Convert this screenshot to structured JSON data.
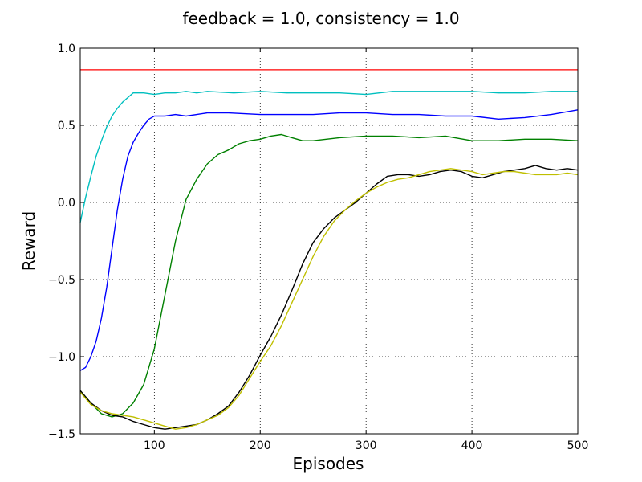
{
  "chart_data": {
    "type": "line",
    "title": "feedback = 1.0, consistency = 1.0",
    "xlabel": "Episodes",
    "ylabel": "Reward",
    "xlim": [
      30,
      500
    ],
    "ylim": [
      -1.5,
      1.0
    ],
    "xticks": [
      100,
      200,
      300,
      400,
      500
    ],
    "xtick_labels": [
      "100",
      "200",
      "300",
      "400",
      "500"
    ],
    "yticks": [
      -1.5,
      -1.0,
      -0.5,
      0.0,
      0.5,
      1.0
    ],
    "ytick_labels": [
      "−1.5",
      "−1.0",
      "−0.5",
      "0.0",
      "0.5",
      "1.0"
    ],
    "grid": true,
    "hlines": [
      {
        "y": 0.86,
        "color": "#ff0000"
      }
    ],
    "series": [
      {
        "color": "#00bfbf",
        "x": [
          30,
          35,
          40,
          45,
          50,
          55,
          60,
          65,
          70,
          75,
          80,
          90,
          100,
          110,
          120,
          130,
          140,
          150,
          175,
          200,
          225,
          250,
          275,
          300,
          325,
          350,
          375,
          400,
          425,
          450,
          475,
          500
        ],
        "y": [
          -0.13,
          0.03,
          0.17,
          0.3,
          0.4,
          0.49,
          0.56,
          0.61,
          0.65,
          0.68,
          0.71,
          0.71,
          0.7,
          0.71,
          0.71,
          0.72,
          0.71,
          0.72,
          0.71,
          0.72,
          0.71,
          0.71,
          0.71,
          0.7,
          0.72,
          0.72,
          0.72,
          0.72,
          0.71,
          0.71,
          0.72,
          0.72
        ]
      },
      {
        "color": "#0000ff",
        "x": [
          30,
          35,
          40,
          45,
          50,
          55,
          60,
          65,
          70,
          75,
          80,
          85,
          90,
          95,
          100,
          110,
          120,
          130,
          140,
          150,
          170,
          200,
          225,
          250,
          275,
          300,
          325,
          350,
          375,
          400,
          425,
          450,
          475,
          500
        ],
        "y": [
          -1.09,
          -1.07,
          -1.0,
          -0.9,
          -0.75,
          -0.55,
          -0.3,
          -0.05,
          0.15,
          0.3,
          0.39,
          0.45,
          0.5,
          0.54,
          0.56,
          0.56,
          0.57,
          0.56,
          0.57,
          0.58,
          0.58,
          0.57,
          0.57,
          0.57,
          0.58,
          0.58,
          0.57,
          0.57,
          0.56,
          0.56,
          0.54,
          0.55,
          0.57,
          0.6
        ]
      },
      {
        "color": "#008000",
        "x": [
          30,
          40,
          50,
          60,
          70,
          80,
          90,
          100,
          110,
          120,
          130,
          140,
          150,
          160,
          170,
          180,
          190,
          200,
          210,
          220,
          230,
          240,
          250,
          275,
          300,
          325,
          350,
          375,
          400,
          425,
          450,
          475,
          500
        ],
        "y": [
          -1.22,
          -1.3,
          -1.37,
          -1.39,
          -1.37,
          -1.3,
          -1.18,
          -0.95,
          -0.6,
          -0.25,
          0.02,
          0.15,
          0.25,
          0.31,
          0.34,
          0.38,
          0.4,
          0.41,
          0.43,
          0.44,
          0.42,
          0.4,
          0.4,
          0.42,
          0.43,
          0.43,
          0.42,
          0.43,
          0.4,
          0.4,
          0.41,
          0.41,
          0.4
        ]
      },
      {
        "color": "#000000",
        "x": [
          30,
          40,
          50,
          60,
          70,
          80,
          90,
          100,
          110,
          120,
          130,
          140,
          150,
          160,
          170,
          180,
          190,
          200,
          210,
          220,
          230,
          240,
          250,
          260,
          270,
          280,
          290,
          300,
          310,
          320,
          330,
          340,
          350,
          360,
          370,
          380,
          390,
          400,
          410,
          420,
          430,
          440,
          450,
          460,
          470,
          480,
          490,
          500
        ],
        "y": [
          -1.22,
          -1.3,
          -1.35,
          -1.38,
          -1.39,
          -1.42,
          -1.44,
          -1.46,
          -1.47,
          -1.46,
          -1.45,
          -1.44,
          -1.41,
          -1.37,
          -1.32,
          -1.23,
          -1.12,
          -0.99,
          -0.87,
          -0.73,
          -0.57,
          -0.4,
          -0.26,
          -0.17,
          -0.1,
          -0.05,
          0.0,
          0.06,
          0.12,
          0.17,
          0.18,
          0.18,
          0.17,
          0.18,
          0.2,
          0.21,
          0.2,
          0.17,
          0.16,
          0.18,
          0.2,
          0.21,
          0.22,
          0.24,
          0.22,
          0.21,
          0.22,
          0.21
        ]
      },
      {
        "color": "#bfbf00",
        "x": [
          30,
          40,
          50,
          60,
          70,
          80,
          90,
          100,
          110,
          120,
          130,
          140,
          150,
          160,
          170,
          180,
          190,
          200,
          210,
          220,
          230,
          240,
          250,
          260,
          270,
          280,
          290,
          300,
          310,
          320,
          330,
          340,
          350,
          360,
          370,
          380,
          390,
          400,
          410,
          420,
          430,
          440,
          450,
          460,
          470,
          480,
          490,
          500
        ],
        "y": [
          -1.23,
          -1.31,
          -1.35,
          -1.37,
          -1.38,
          -1.39,
          -1.41,
          -1.43,
          -1.45,
          -1.47,
          -1.46,
          -1.44,
          -1.41,
          -1.38,
          -1.33,
          -1.25,
          -1.14,
          -1.03,
          -0.93,
          -0.8,
          -0.65,
          -0.5,
          -0.35,
          -0.22,
          -0.12,
          -0.05,
          0.01,
          0.06,
          0.1,
          0.13,
          0.15,
          0.16,
          0.18,
          0.2,
          0.21,
          0.22,
          0.21,
          0.2,
          0.18,
          0.19,
          0.2,
          0.2,
          0.19,
          0.18,
          0.18,
          0.18,
          0.19,
          0.18
        ]
      }
    ]
  }
}
